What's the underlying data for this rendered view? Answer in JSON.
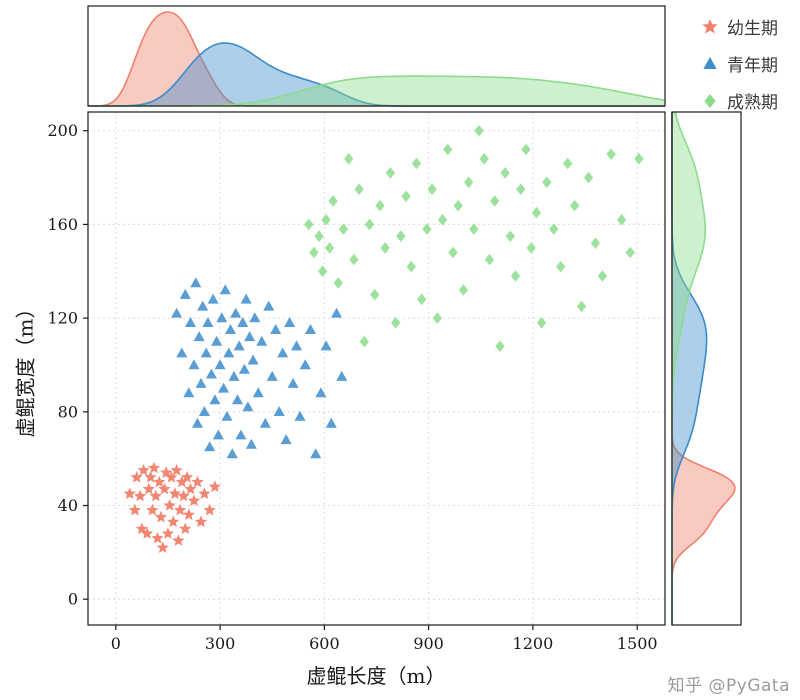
{
  "watermark": "知乎 @PyGata",
  "legend": {
    "items": [
      {
        "label": "幼生期",
        "marker": "star",
        "color": "#F0806B"
      },
      {
        "label": "青年期",
        "marker": "triangle",
        "color": "#3B8CCB"
      },
      {
        "label": "成熟期",
        "marker": "diamond",
        "color": "#8BDC8B"
      }
    ]
  },
  "chart_data": {
    "type": "scatter",
    "subtype": "jointplot_with_marginal_kde",
    "title": "",
    "xlabel": "虚鲲长度（m）",
    "ylabel": "虚鲲宽度（m）",
    "xlim": [
      -80,
      1580
    ],
    "ylim": [
      -11,
      208
    ],
    "xticks": [
      0,
      300,
      600,
      900,
      1200,
      1500
    ],
    "yticks": [
      0,
      40,
      80,
      120,
      160,
      200
    ],
    "grid": true,
    "legend_position": "top-right-outside",
    "marginals": "kde",
    "series": [
      {
        "name": "幼生期",
        "marker": "star",
        "color": "#F0806B",
        "points": [
          [
            40,
            45
          ],
          [
            55,
            38
          ],
          [
            60,
            52
          ],
          [
            70,
            44
          ],
          [
            75,
            30
          ],
          [
            80,
            55
          ],
          [
            90,
            28
          ],
          [
            95,
            47
          ],
          [
            100,
            52
          ],
          [
            105,
            38
          ],
          [
            110,
            56
          ],
          [
            115,
            44
          ],
          [
            120,
            26
          ],
          [
            125,
            50
          ],
          [
            130,
            35
          ],
          [
            135,
            22
          ],
          [
            140,
            47
          ],
          [
            145,
            54
          ],
          [
            150,
            28
          ],
          [
            155,
            40
          ],
          [
            160,
            52
          ],
          [
            165,
            33
          ],
          [
            170,
            45
          ],
          [
            175,
            55
          ],
          [
            180,
            25
          ],
          [
            185,
            38
          ],
          [
            190,
            50
          ],
          [
            195,
            44
          ],
          [
            200,
            30
          ],
          [
            205,
            52
          ],
          [
            210,
            36
          ],
          [
            215,
            47
          ],
          [
            225,
            42
          ],
          [
            235,
            50
          ],
          [
            245,
            33
          ],
          [
            255,
            45
          ],
          [
            270,
            38
          ],
          [
            285,
            48
          ]
        ]
      },
      {
        "name": "青年期",
        "marker": "triangle",
        "color": "#3B8CCB",
        "points": [
          [
            175,
            122
          ],
          [
            190,
            105
          ],
          [
            200,
            130
          ],
          [
            210,
            88
          ],
          [
            215,
            118
          ],
          [
            225,
            100
          ],
          [
            230,
            135
          ],
          [
            235,
            75
          ],
          [
            240,
            112
          ],
          [
            245,
            92
          ],
          [
            250,
            125
          ],
          [
            255,
            80
          ],
          [
            260,
            105
          ],
          [
            265,
            118
          ],
          [
            270,
            65
          ],
          [
            275,
            96
          ],
          [
            280,
            128
          ],
          [
            285,
            85
          ],
          [
            290,
            110
          ],
          [
            295,
            70
          ],
          [
            300,
            100
          ],
          [
            305,
            120
          ],
          [
            310,
            90
          ],
          [
            315,
            132
          ],
          [
            320,
            78
          ],
          [
            325,
            105
          ],
          [
            330,
            115
          ],
          [
            335,
            62
          ],
          [
            340,
            95
          ],
          [
            345,
            122
          ],
          [
            350,
            85
          ],
          [
            355,
            108
          ],
          [
            360,
            70
          ],
          [
            365,
            118
          ],
          [
            370,
            98
          ],
          [
            375,
            128
          ],
          [
            380,
            82
          ],
          [
            385,
            112
          ],
          [
            390,
            66
          ],
          [
            395,
            102
          ],
          [
            400,
            120
          ],
          [
            410,
            88
          ],
          [
            420,
            110
          ],
          [
            430,
            75
          ],
          [
            440,
            125
          ],
          [
            450,
            95
          ],
          [
            460,
            115
          ],
          [
            470,
            80
          ],
          [
            480,
            105
          ],
          [
            490,
            68
          ],
          [
            500,
            118
          ],
          [
            510,
            92
          ],
          [
            520,
            108
          ],
          [
            530,
            78
          ],
          [
            545,
            100
          ],
          [
            560,
            115
          ],
          [
            575,
            62
          ],
          [
            590,
            88
          ],
          [
            605,
            108
          ],
          [
            620,
            75
          ],
          [
            635,
            122
          ],
          [
            650,
            95
          ]
        ]
      },
      {
        "name": "成熟期",
        "marker": "diamond",
        "color": "#8BDC8B",
        "points": [
          [
            555,
            160
          ],
          [
            570,
            148
          ],
          [
            585,
            155
          ],
          [
            595,
            140
          ],
          [
            605,
            162
          ],
          [
            615,
            150
          ],
          [
            625,
            170
          ],
          [
            640,
            135
          ],
          [
            655,
            158
          ],
          [
            670,
            188
          ],
          [
            685,
            145
          ],
          [
            700,
            175
          ],
          [
            715,
            110
          ],
          [
            730,
            160
          ],
          [
            745,
            130
          ],
          [
            760,
            168
          ],
          [
            775,
            150
          ],
          [
            790,
            182
          ],
          [
            805,
            118
          ],
          [
            820,
            155
          ],
          [
            835,
            172
          ],
          [
            850,
            142
          ],
          [
            865,
            186
          ],
          [
            880,
            128
          ],
          [
            895,
            158
          ],
          [
            910,
            175
          ],
          [
            925,
            120
          ],
          [
            940,
            162
          ],
          [
            955,
            192
          ],
          [
            970,
            148
          ],
          [
            985,
            168
          ],
          [
            1000,
            132
          ],
          [
            1015,
            178
          ],
          [
            1030,
            158
          ],
          [
            1045,
            200
          ],
          [
            1060,
            188
          ],
          [
            1075,
            145
          ],
          [
            1090,
            170
          ],
          [
            1105,
            108
          ],
          [
            1120,
            182
          ],
          [
            1135,
            155
          ],
          [
            1150,
            138
          ],
          [
            1165,
            175
          ],
          [
            1180,
            192
          ],
          [
            1195,
            150
          ],
          [
            1210,
            165
          ],
          [
            1225,
            118
          ],
          [
            1240,
            178
          ],
          [
            1260,
            158
          ],
          [
            1280,
            142
          ],
          [
            1300,
            186
          ],
          [
            1320,
            168
          ],
          [
            1340,
            125
          ],
          [
            1360,
            180
          ],
          [
            1380,
            152
          ],
          [
            1400,
            138
          ],
          [
            1425,
            190
          ],
          [
            1455,
            162
          ],
          [
            1480,
            148
          ],
          [
            1505,
            188
          ]
        ]
      }
    ]
  }
}
